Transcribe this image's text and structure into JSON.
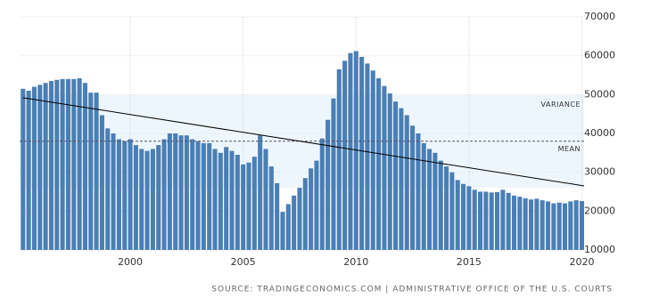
{
  "chart_data": {
    "type": "bar",
    "source": "SOURCE: TRADINGECONOMICS.COM | ADMINISTRATIVE OFFICE OF THE U.S. COURTS",
    "x": [
      1995.25,
      1995.5,
      1995.75,
      1996,
      1996.25,
      1996.5,
      1996.75,
      1997,
      1997.25,
      1997.5,
      1997.75,
      1998,
      1998.25,
      1998.5,
      1998.75,
      1999,
      1999.25,
      1999.5,
      1999.75,
      2000,
      2000.25,
      2000.5,
      2000.75,
      2001,
      2001.25,
      2001.5,
      2001.75,
      2002,
      2002.25,
      2002.5,
      2002.75,
      2003,
      2003.25,
      2003.5,
      2003.75,
      2004,
      2004.25,
      2004.5,
      2004.75,
      2005,
      2005.25,
      2005.5,
      2005.75,
      2006,
      2006.25,
      2006.5,
      2006.75,
      2007,
      2007.25,
      2007.5,
      2007.75,
      2008,
      2008.25,
      2008.5,
      2008.75,
      2009,
      2009.25,
      2009.5,
      2009.75,
      2010,
      2010.25,
      2010.5,
      2010.75,
      2011,
      2011.25,
      2011.5,
      2011.75,
      2012,
      2012.25,
      2012.5,
      2012.75,
      2013,
      2013.25,
      2013.5,
      2013.75,
      2014,
      2014.25,
      2014.5,
      2014.75,
      2015,
      2015.25,
      2015.5,
      2015.75,
      2016,
      2016.25,
      2016.5,
      2016.75,
      2017,
      2017.25,
      2017.5,
      2017.75,
      2018,
      2018.25,
      2018.5,
      2018.75,
      2019,
      2019.25,
      2019.5,
      2019.75,
      2020
    ],
    "values": [
      51500,
      51000,
      52000,
      52500,
      53000,
      53500,
      53800,
      54000,
      54000,
      54000,
      54200,
      53000,
      50500,
      50500,
      44700,
      41300,
      40000,
      38500,
      38000,
      38500,
      37000,
      36000,
      35500,
      36000,
      37000,
      38500,
      40000,
      40000,
      39500,
      39500,
      38500,
      38000,
      37500,
      37500,
      36000,
      35000,
      36500,
      35500,
      34500,
      32000,
      32500,
      34000,
      39500,
      36000,
      31500,
      27200,
      19800,
      21800,
      24000,
      26000,
      28500,
      31000,
      33000,
      38700,
      43500,
      49000,
      56500,
      58700,
      60700,
      61200,
      59700,
      58000,
      56200,
      54200,
      52200,
      50300,
      48200,
      46500,
      44700,
      42000,
      40000,
      37500,
      36000,
      35000,
      33000,
      31500,
      30000,
      28000,
      27000,
      26400,
      25500,
      25000,
      25000,
      24800,
      24900,
      25500,
      24700,
      24000,
      23700,
      23300,
      23000,
      23200,
      22800,
      22500,
      22000,
      22200,
      22000,
      22500,
      22800,
      22600
    ],
    "color": "#4a7fb5",
    "xlim": [
      1995.1,
      2020.1
    ],
    "xticks": [
      2000,
      2005,
      2010,
      2015,
      2020
    ],
    "ylim": [
      10000,
      70000
    ],
    "yticks": [
      10000,
      20000,
      30000,
      40000,
      50000,
      60000,
      70000
    ],
    "grid": true,
    "mean": 38000,
    "mean_label": "MEAN",
    "variance_band": [
      26000,
      50000
    ],
    "variance_label": "VARIANCE",
    "trend": {
      "x": [
        1995.25,
        2020.1
      ],
      "values": [
        49200,
        26500
      ]
    }
  }
}
